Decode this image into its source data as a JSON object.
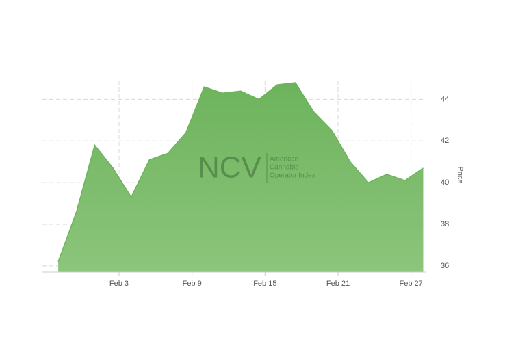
{
  "chart_data": {
    "type": "area",
    "x": [
      -2,
      -0.5,
      1,
      2.5,
      4,
      5.5,
      7,
      8.5,
      10,
      11.5,
      13,
      14.5,
      16,
      17.5,
      19,
      20.5,
      22,
      23.5,
      25,
      26.5,
      28
    ],
    "series": [
      {
        "name": "Price",
        "color": "#6db35c",
        "values": [
          36.2,
          38.6,
          41.8,
          40.7,
          39.3,
          41.1,
          41.4,
          42.4,
          44.6,
          44.3,
          44.4,
          44.0,
          44.7,
          44.8,
          43.4,
          42.5,
          41.0,
          40.0,
          40.4,
          40.1,
          40.7
        ]
      }
    ],
    "xlim": [
      -3.3,
      28.2
    ],
    "xticks": [
      {
        "value": 3,
        "label": "Feb 3"
      },
      {
        "value": 9,
        "label": "Feb 9"
      },
      {
        "value": 15,
        "label": "Feb 15"
      },
      {
        "value": 21,
        "label": "Feb 21"
      },
      {
        "value": 27,
        "label": "Feb 27"
      }
    ],
    "ylim": [
      35.7,
      44.9
    ],
    "yticks": [
      36,
      38,
      40,
      42,
      44
    ],
    "y_label": "Price",
    "grid": true,
    "watermark": {
      "logo": "NCV",
      "lines": [
        "American",
        "Cannabis",
        "Operator Index"
      ]
    }
  }
}
